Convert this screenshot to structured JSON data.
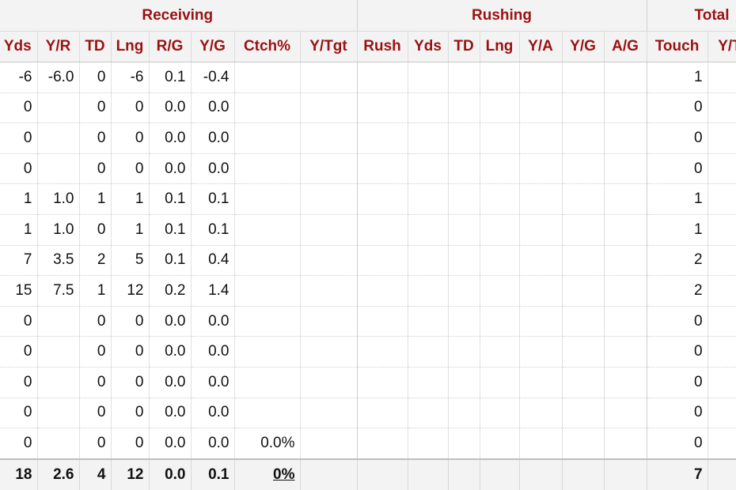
{
  "group_headers": {
    "receiving": "Receiving",
    "rushing": "Rushing",
    "total": "Total"
  },
  "columns": [
    "Yds",
    "Y/R",
    "TD",
    "Lng",
    "R/G",
    "Y/G",
    "Ctch%",
    "Y/Tgt",
    "Rush",
    "Yds",
    "TD",
    "Lng",
    "Y/A",
    "Y/G",
    "A/G",
    "Touch",
    "Y/T"
  ],
  "rows": [
    [
      "-6",
      "-6.0",
      "0",
      "-6",
      "0.1",
      "-0.4",
      "",
      "",
      "",
      "",
      "",
      "",
      "",
      "",
      "",
      "1",
      "-"
    ],
    [
      "0",
      "",
      "0",
      "0",
      "0.0",
      "0.0",
      "",
      "",
      "",
      "",
      "",
      "",
      "",
      "",
      "",
      "0",
      ""
    ],
    [
      "0",
      "",
      "0",
      "0",
      "0.0",
      "0.0",
      "",
      "",
      "",
      "",
      "",
      "",
      "",
      "",
      "",
      "0",
      ""
    ],
    [
      "0",
      "",
      "0",
      "0",
      "0.0",
      "0.0",
      "",
      "",
      "",
      "",
      "",
      "",
      "",
      "",
      "",
      "0",
      ""
    ],
    [
      "1",
      "1.0",
      "1",
      "1",
      "0.1",
      "0.1",
      "",
      "",
      "",
      "",
      "",
      "",
      "",
      "",
      "",
      "1",
      ""
    ],
    [
      "1",
      "1.0",
      "0",
      "1",
      "0.1",
      "0.1",
      "",
      "",
      "",
      "",
      "",
      "",
      "",
      "",
      "",
      "1",
      ""
    ],
    [
      "7",
      "3.5",
      "2",
      "5",
      "0.1",
      "0.4",
      "",
      "",
      "",
      "",
      "",
      "",
      "",
      "",
      "",
      "2",
      ""
    ],
    [
      "15",
      "7.5",
      "1",
      "12",
      "0.2",
      "1.4",
      "",
      "",
      "",
      "",
      "",
      "",
      "",
      "",
      "",
      "2",
      ""
    ],
    [
      "0",
      "",
      "0",
      "0",
      "0.0",
      "0.0",
      "",
      "",
      "",
      "",
      "",
      "",
      "",
      "",
      "",
      "0",
      ""
    ],
    [
      "0",
      "",
      "0",
      "0",
      "0.0",
      "0.0",
      "",
      "",
      "",
      "",
      "",
      "",
      "",
      "",
      "",
      "0",
      ""
    ],
    [
      "0",
      "",
      "0",
      "0",
      "0.0",
      "0.0",
      "",
      "",
      "",
      "",
      "",
      "",
      "",
      "",
      "",
      "0",
      ""
    ],
    [
      "0",
      "",
      "0",
      "0",
      "0.0",
      "0.0",
      "",
      "",
      "",
      "",
      "",
      "",
      "",
      "",
      "",
      "0",
      ""
    ],
    [
      "0",
      "",
      "0",
      "0",
      "0.0",
      "0.0",
      "0.0%",
      "",
      "",
      "",
      "",
      "",
      "",
      "",
      "",
      "0",
      ""
    ]
  ],
  "totals": [
    "18",
    "2.6",
    "4",
    "12",
    "0.0",
    "0.1",
    "0%",
    "",
    "",
    "",
    "",
    "",
    "",
    "",
    "",
    "7",
    ""
  ]
}
